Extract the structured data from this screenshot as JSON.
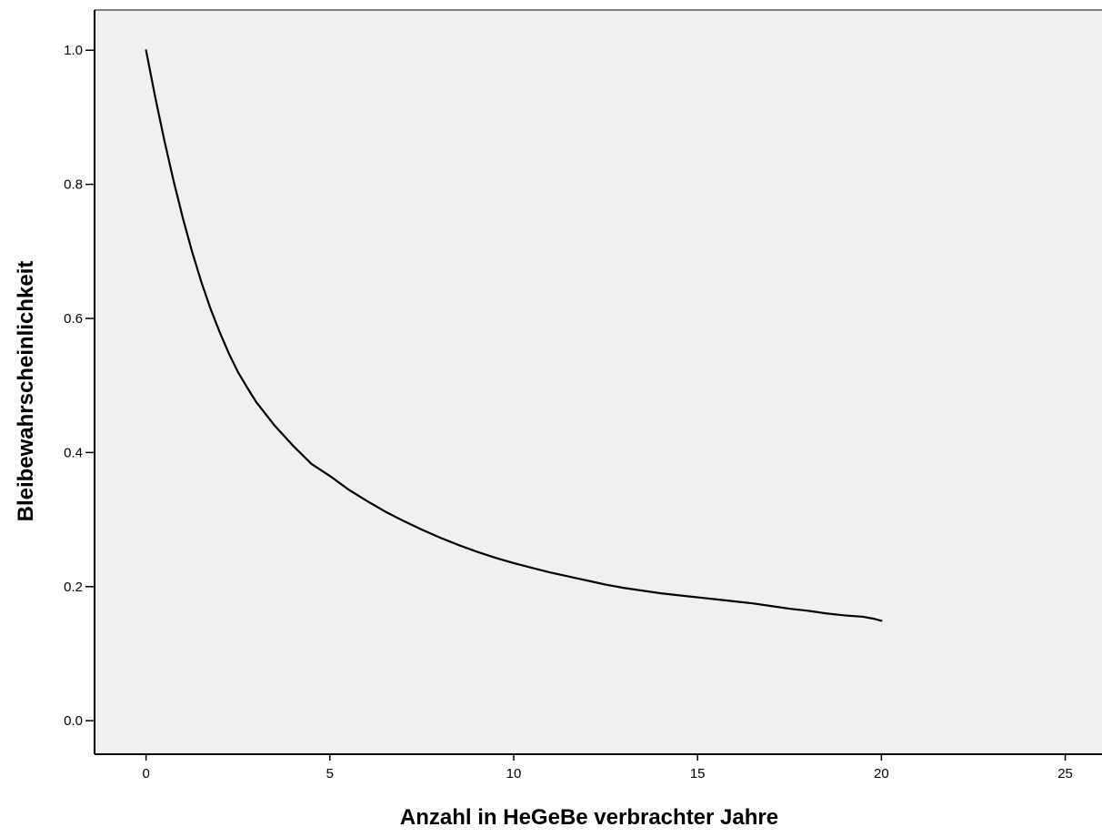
{
  "chart_data": {
    "type": "line",
    "title": "",
    "xlabel": "Anzahl in HeGeBe verbrachter Jahre",
    "ylabel": "Bleibewahrscheinlichkeit",
    "xlim": [
      -1.4,
      26
    ],
    "ylim": [
      -0.05,
      1.06
    ],
    "x_ticks": [
      0,
      5,
      10,
      15,
      20,
      25
    ],
    "x_tick_labels": [
      "0",
      "5",
      "10",
      "15",
      "20",
      "25"
    ],
    "y_ticks": [
      0.0,
      0.2,
      0.4,
      0.6,
      0.8,
      1.0
    ],
    "y_tick_labels": [
      "0.0",
      "0.2",
      "0.4",
      "0.6",
      "0.8",
      "1.0"
    ],
    "grid": false,
    "legend": "none",
    "colors": {
      "plot_background": "#f0f0f0",
      "line": "#000000",
      "frame": "#7f7f7f"
    },
    "series": [
      {
        "x": [
          0,
          0.25,
          0.5,
          0.75,
          1.0,
          1.25,
          1.5,
          1.75,
          2.0,
          2.25,
          2.5,
          2.75,
          3.0,
          3.5,
          4.0,
          4.5,
          5.0,
          5.5,
          6.0,
          6.5,
          7.0,
          7.5,
          8.0,
          8.5,
          9.0,
          9.5,
          10.0,
          10.5,
          11.0,
          11.5,
          12.0,
          12.5,
          13.0,
          13.5,
          14.0,
          14.5,
          15.0,
          15.5,
          16.0,
          16.5,
          17.0,
          17.5,
          18.0,
          18.5,
          19.0,
          19.5,
          19.8,
          20.0
        ],
        "y": [
          1.0,
          0.93,
          0.865,
          0.805,
          0.75,
          0.7,
          0.655,
          0.615,
          0.58,
          0.548,
          0.52,
          0.497,
          0.475,
          0.44,
          0.41,
          0.383,
          0.365,
          0.345,
          0.328,
          0.312,
          0.298,
          0.285,
          0.273,
          0.262,
          0.252,
          0.243,
          0.235,
          0.228,
          0.221,
          0.215,
          0.209,
          0.203,
          0.198,
          0.194,
          0.19,
          0.187,
          0.184,
          0.181,
          0.178,
          0.175,
          0.171,
          0.167,
          0.164,
          0.16,
          0.157,
          0.155,
          0.152,
          0.149
        ]
      }
    ]
  }
}
